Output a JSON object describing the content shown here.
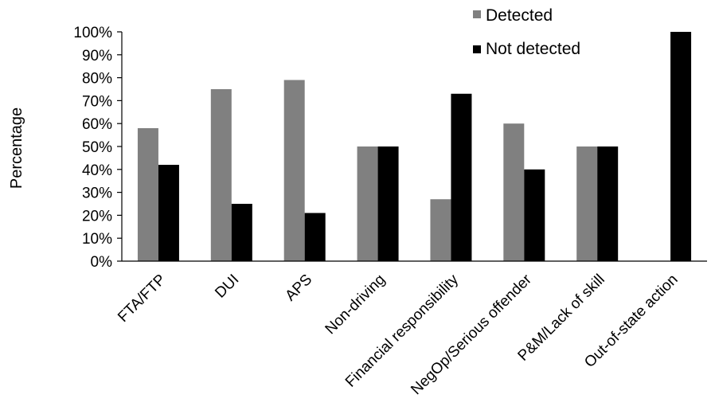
{
  "chart_data": {
    "type": "bar",
    "categories": [
      "FTA/FTP",
      "DUI",
      "APS",
      "Non-driving",
      "Financial responsibility",
      "NegOp/Serious offender",
      "P&M/Lack of skill",
      "Out-of-state action"
    ],
    "series": [
      {
        "name": "Detected",
        "color": "#808080",
        "values": [
          58,
          75,
          79,
          50,
          27,
          60,
          50,
          0
        ]
      },
      {
        "name": "Not detected",
        "color": "#000000",
        "values": [
          42,
          25,
          21,
          50,
          73,
          40,
          50,
          100
        ]
      }
    ],
    "ylabel": "Percentage",
    "xlabel": "",
    "ylim": [
      0,
      100
    ],
    "yticks": [
      "0%",
      "10%",
      "20%",
      "30%",
      "40%",
      "50%",
      "60%",
      "70%",
      "80%",
      "90%",
      "100%"
    ],
    "grid": false,
    "legend": "top-right"
  }
}
